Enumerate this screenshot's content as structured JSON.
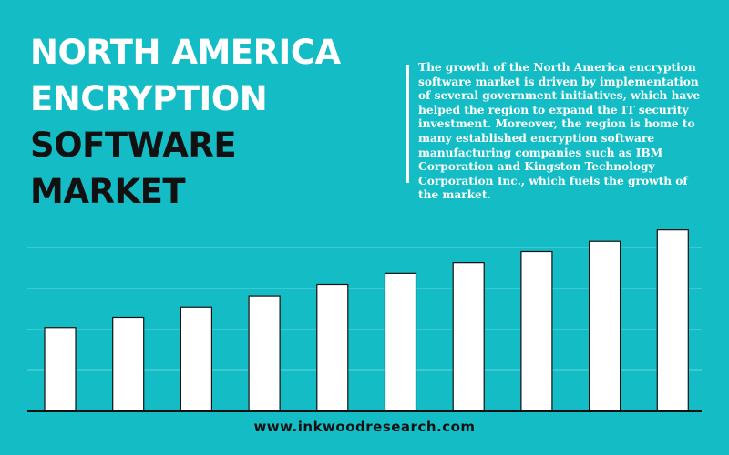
{
  "heading": {
    "line1": "NORTH AMERICA",
    "line2": "ENCRYPTION",
    "line3": "SOFTWARE",
    "line4": "MARKET"
  },
  "description": "The growth of the North America encryption software market is driven by implementation of several government initiatives, which have helped the region to expand the IT security investment. Moreover, the region is home to many established encryption software manufacturing companies such as IBM Corporation and Kingston Technology Corporation Inc., which fuels the growth of the market.",
  "footer": {
    "website": "www.inkwoodresearch.com"
  },
  "colors": {
    "background": "#14bdc6",
    "bar_fill": "#ffffff",
    "bar_stroke": "#111111",
    "gridline": "#5fd6dc",
    "heading_white": "#ffffff",
    "heading_black": "#111111"
  },
  "chart_data": {
    "type": "bar",
    "title": "",
    "xlabel": "",
    "ylabel": "",
    "values": [
      2.05,
      2.3,
      2.55,
      2.82,
      3.1,
      3.37,
      3.63,
      3.9,
      4.15,
      4.43
    ],
    "ylim": [
      0,
      5
    ],
    "grid": true,
    "gridlines": [
      1,
      2,
      3,
      4
    ]
  }
}
